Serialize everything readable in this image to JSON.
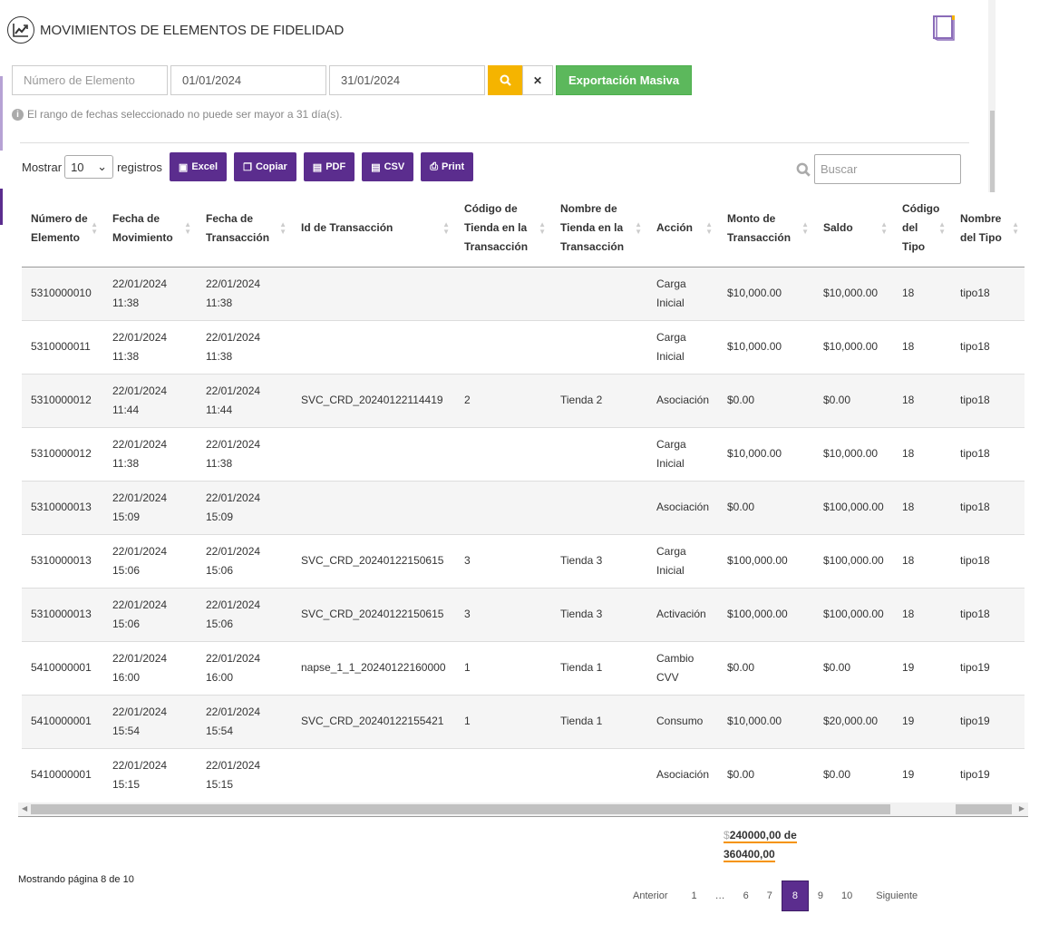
{
  "header": {
    "title": "MOVIMIENTOS DE ELEMENTOS DE FIDELIDAD"
  },
  "filters": {
    "element_placeholder": "Número de Elemento",
    "date_from": "01/01/2024",
    "date_to": "31/01/2024",
    "export_label": "Exportación Masiva",
    "note": "El rango de fechas seleccionado no puede ser mayor a 31 día(s)."
  },
  "toolbar": {
    "show_label": "Mostrar",
    "page_size": "10",
    "records_label": "registros",
    "buttons": [
      "Excel",
      "Copiar",
      "PDF",
      "CSV",
      "Print"
    ],
    "search_placeholder": "Buscar"
  },
  "table": {
    "columns": [
      "Número de Elemento",
      "Fecha de Movimiento",
      "Fecha de Transacción",
      "Id de Transacción",
      "Código de Tienda en la Transacción",
      "Nombre de Tienda en la Transacción",
      "Acción",
      "Monto de Transacción",
      "Saldo",
      "Código del Tipo",
      "Nombre del Tipo"
    ],
    "rows": [
      [
        "5310000010",
        "22/01/2024 11:38",
        "22/01/2024 11:38",
        "",
        "",
        "",
        "Carga Inicial",
        "$10,000.00",
        "$10,000.00",
        "18",
        "tipo18"
      ],
      [
        "5310000011",
        "22/01/2024 11:38",
        "22/01/2024 11:38",
        "",
        "",
        "",
        "Carga Inicial",
        "$10,000.00",
        "$10,000.00",
        "18",
        "tipo18"
      ],
      [
        "5310000012",
        "22/01/2024 11:44",
        "22/01/2024 11:44",
        "SVC_CRD_20240122114419",
        "2",
        "Tienda 2",
        "Asociación",
        "$0.00",
        "$0.00",
        "18",
        "tipo18"
      ],
      [
        "5310000012",
        "22/01/2024 11:38",
        "22/01/2024 11:38",
        "",
        "",
        "",
        "Carga Inicial",
        "$10,000.00",
        "$10,000.00",
        "18",
        "tipo18"
      ],
      [
        "5310000013",
        "22/01/2024 15:09",
        "22/01/2024 15:09",
        "",
        "",
        "",
        "Asociación",
        "$0.00",
        "$100,000.00",
        "18",
        "tipo18"
      ],
      [
        "5310000013",
        "22/01/2024 15:06",
        "22/01/2024 15:06",
        "SVC_CRD_20240122150615",
        "3",
        "Tienda 3",
        "Carga Inicial",
        "$100,000.00",
        "$100,000.00",
        "18",
        "tipo18"
      ],
      [
        "5310000013",
        "22/01/2024 15:06",
        "22/01/2024 15:06",
        "SVC_CRD_20240122150615",
        "3",
        "Tienda 3",
        "Activación",
        "$100,000.00",
        "$100,000.00",
        "18",
        "tipo18"
      ],
      [
        "5410000001",
        "22/01/2024 16:00",
        "22/01/2024 16:00",
        "napse_1_1_20240122160000",
        "1",
        "Tienda 1",
        "Cambio CVV",
        "$0.00",
        "$0.00",
        "19",
        "tipo19"
      ],
      [
        "5410000001",
        "22/01/2024 15:54",
        "22/01/2024 15:54",
        "SVC_CRD_20240122155421",
        "1",
        "Tienda 1",
        "Consumo",
        "$10,000.00",
        "$20,000.00",
        "19",
        "tipo19"
      ],
      [
        "5410000001",
        "22/01/2024 15:15",
        "22/01/2024 15:15",
        "",
        "",
        "",
        "Asociación",
        "$0.00",
        "$0.00",
        "19",
        "tipo19"
      ]
    ]
  },
  "total": {
    "currency": "$",
    "line1": "240000,00 de",
    "line2": "360400,00"
  },
  "footer": {
    "info": "Mostrando página 8 de 10",
    "pages": [
      "Anterior",
      "1",
      "…",
      "6",
      "7",
      "8",
      "9",
      "10",
      "Siguiente"
    ],
    "active": "8"
  },
  "colors": {
    "primary": "#5b2d8e",
    "search": "#f5b400",
    "export": "#5cb85c",
    "underline": "#f59300"
  }
}
